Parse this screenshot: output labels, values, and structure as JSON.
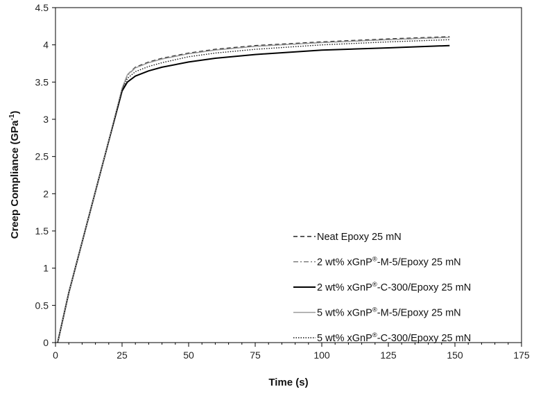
{
  "chart_data": {
    "type": "line",
    "xlabel": "Time (s)",
    "ylabel_main": "Creep Compliance (GPa",
    "ylabel_sup": "-1",
    "ylabel_end": ")",
    "xlim": [
      0,
      175
    ],
    "ylim": [
      0,
      4.5
    ],
    "xticks": [
      0,
      25,
      50,
      75,
      100,
      125,
      150,
      175
    ],
    "yticks": [
      0,
      0.5,
      1,
      1.5,
      2,
      2.5,
      3,
      3.5,
      4,
      4.5
    ],
    "grid": false,
    "legend_position": "bottom-right",
    "series": [
      {
        "name": "Neat Epoxy 25 mN",
        "name_parts": [
          "Neat Epoxy 25 mN",
          "",
          ""
        ],
        "color": "#222222",
        "dash": "6,4",
        "stroke_width": 1.4,
        "x": [
          0.8,
          5,
          10,
          15,
          20,
          25,
          27,
          30,
          35,
          40,
          50,
          60,
          75,
          100,
          125,
          148
        ],
        "y": [
          0,
          0.67,
          1.35,
          2.03,
          2.71,
          3.4,
          3.6,
          3.7,
          3.77,
          3.82,
          3.89,
          3.94,
          3.99,
          4.04,
          4.08,
          4.11
        ]
      },
      {
        "name": "2 wt% xGnP®-M-5/Epoxy 25 mN",
        "name_parts": [
          "2 wt% xGnP",
          "®",
          "-M-5/Epoxy 25 mN"
        ],
        "color": "#666666",
        "dash": "7,3,2,3",
        "stroke_width": 1.3,
        "x": [
          0.8,
          5,
          10,
          15,
          20,
          25,
          27,
          30,
          35,
          40,
          50,
          60,
          75,
          100,
          125,
          148
        ],
        "y": [
          0,
          0.67,
          1.35,
          2.03,
          2.71,
          3.4,
          3.59,
          3.69,
          3.76,
          3.81,
          3.88,
          3.93,
          3.98,
          4.03,
          4.07,
          4.1
        ]
      },
      {
        "name": "2 wt% xGnP®-C-300/Epoxy 25 mN",
        "name_parts": [
          "2 wt% xGnP",
          "®",
          "-C-300/Epoxy 25 mN"
        ],
        "color": "#000000",
        "dash": "",
        "stroke_width": 2,
        "x": [
          0.8,
          5,
          10,
          15,
          20,
          25,
          27,
          30,
          35,
          40,
          50,
          60,
          75,
          100,
          125,
          148
        ],
        "y": [
          0,
          0.67,
          1.35,
          2.03,
          2.71,
          3.38,
          3.5,
          3.58,
          3.65,
          3.7,
          3.77,
          3.82,
          3.87,
          3.93,
          3.96,
          3.99
        ]
      },
      {
        "name": "5 wt% xGnP®-M-5/Epoxy 25 mN",
        "name_parts": [
          "5 wt% xGnP",
          "®",
          "-M-5/Epoxy 25 mN"
        ],
        "color": "#9a9a9a",
        "dash": "",
        "stroke_width": 1.4,
        "x": [
          0.8,
          5,
          10,
          15,
          20,
          25,
          27,
          30,
          35,
          40,
          50,
          60,
          75,
          100,
          125,
          148
        ],
        "y": [
          0,
          0.67,
          1.35,
          2.03,
          2.72,
          3.42,
          3.6,
          3.69,
          3.76,
          3.81,
          3.88,
          3.93,
          3.98,
          4.03,
          4.07,
          4.1
        ]
      },
      {
        "name": "5 wt% xGnP®-C-300/Epoxy 25 mN",
        "name_parts": [
          "5 wt% xGnP",
          "®",
          "-C-300/Epoxy 25 mN"
        ],
        "color": "#111111",
        "dash": "1.5,2",
        "stroke_width": 1.4,
        "x": [
          0.8,
          5,
          10,
          15,
          20,
          25,
          27,
          30,
          35,
          40,
          50,
          60,
          75,
          100,
          125,
          148
        ],
        "y": [
          0,
          0.67,
          1.35,
          2.03,
          2.71,
          3.39,
          3.55,
          3.64,
          3.71,
          3.76,
          3.84,
          3.89,
          3.94,
          4.0,
          4.04,
          4.07
        ]
      }
    ]
  }
}
